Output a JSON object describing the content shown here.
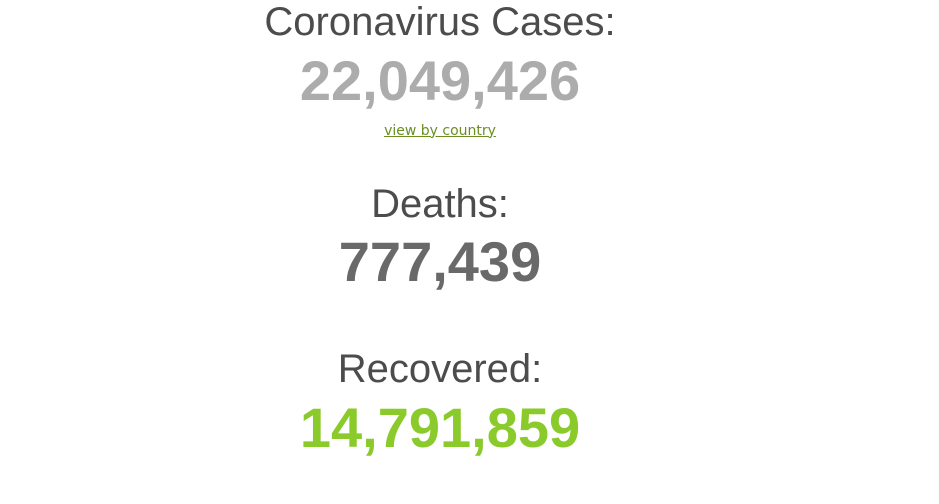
{
  "page": {
    "background_color": "#ffffff",
    "heading_color": "#4c4c4c"
  },
  "counters": {
    "cases": {
      "label": "Coronavirus Cases:",
      "value": "22,049,426",
      "value_color": "#acacac",
      "link_label": "view by country",
      "link_color": "#6b8e23"
    },
    "deaths": {
      "label": "Deaths:",
      "value": "777,439",
      "value_color": "#696969"
    },
    "recovered": {
      "label": "Recovered:",
      "value": "14,791,859",
      "value_color": "#8aca2b"
    }
  }
}
